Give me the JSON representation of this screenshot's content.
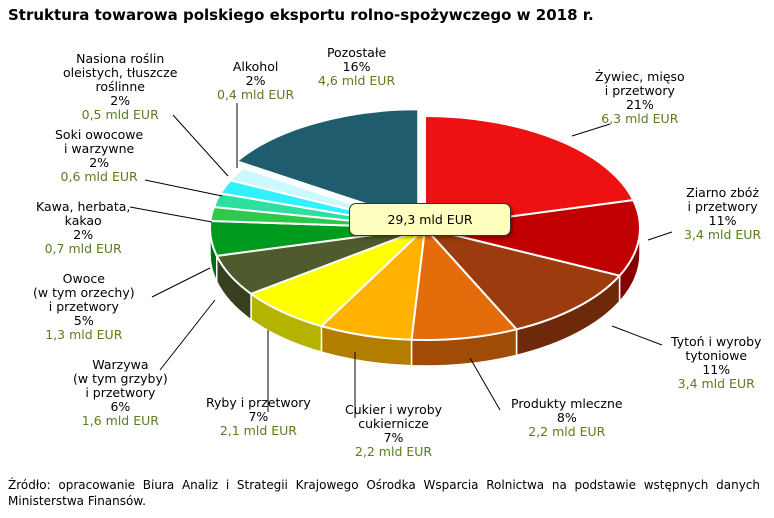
{
  "title": "Struktura towarowa polskiego eksportu rolno-spożywczego w 2018 r.",
  "total_label": "29,3 mld EUR",
  "source": "Źródło: opracowanie Biura Analiz i Strategii Krajowego Ośrodka Wsparcia Rolnictwa na podstawie wstępnych danych Ministerstwa Finansów.",
  "chart_data": {
    "type": "pie",
    "title": "Struktura towarowa polskiego eksportu rolno-spożywczego w 2018 r.",
    "total": "29,3 mld EUR",
    "slices": [
      {
        "name": [
          "Żywiec, mięso",
          "i przetwory"
        ],
        "percent": 21,
        "pct_label": "21%",
        "amount": "6,3 mld EUR",
        "color": "#ee1111"
      },
      {
        "name": [
          "Ziarno zbóż",
          "i przetwory"
        ],
        "percent": 11,
        "pct_label": "11%",
        "amount": "3,4 mld EUR",
        "color": "#c00000"
      },
      {
        "name": [
          "Tytoń i wyroby",
          "tytoniowe"
        ],
        "percent": 11,
        "pct_label": "11%",
        "amount": "3,4 mld EUR",
        "color": "#9b3b0e"
      },
      {
        "name": [
          "Produkty mleczne"
        ],
        "percent": 8,
        "pct_label": "8%",
        "amount": "2,2 mld EUR",
        "color": "#e46c0a"
      },
      {
        "name": [
          "Cukier i wyroby",
          "cukiernicze"
        ],
        "percent": 7,
        "pct_label": "7%",
        "amount": "2,2 mld EUR",
        "color": "#ffb300"
      },
      {
        "name": [
          "Ryby i przetwory"
        ],
        "percent": 7,
        "pct_label": "7%",
        "amount": "2,1 mld EUR",
        "color": "#ffff00"
      },
      {
        "name": [
          "Warzywa",
          "(w tym grzyby)",
          "i przetwory"
        ],
        "percent": 6,
        "pct_label": "6%",
        "amount": "1,6 mld EUR",
        "color": "#4f5a2d"
      },
      {
        "name": [
          "Owoce",
          "(w tym orzechy)",
          "i przetwory"
        ],
        "percent": 5,
        "pct_label": "5%",
        "amount": "1,3 mld EUR",
        "color": "#009a1e"
      },
      {
        "name": [
          "Kawa, herbata,",
          "kakao"
        ],
        "percent": 2,
        "pct_label": "2%",
        "amount": "0,7 mld EUR",
        "color": "#2ec84a"
      },
      {
        "name": [
          "Soki owocowe",
          "i warzywne"
        ],
        "percent": 2,
        "pct_label": "2%",
        "amount": "0,6 mld EUR",
        "color": "#2de0a0"
      },
      {
        "name": [
          "Nasiona roślin",
          "oleistych, tłuszcze",
          "roślinne"
        ],
        "percent": 2,
        "pct_label": "2%",
        "amount": "0,5 mld EUR",
        "color": "#33f0ff"
      },
      {
        "name": [
          "Alkohol"
        ],
        "percent": 2,
        "pct_label": "2%",
        "amount": "0,4 mld EUR",
        "color": "#ccf8ff"
      },
      {
        "name": [
          "Pozostałe"
        ],
        "percent": 16,
        "pct_label": "16%",
        "amount": "4,6 mld EUR",
        "color": "#1f5c6e"
      }
    ]
  }
}
